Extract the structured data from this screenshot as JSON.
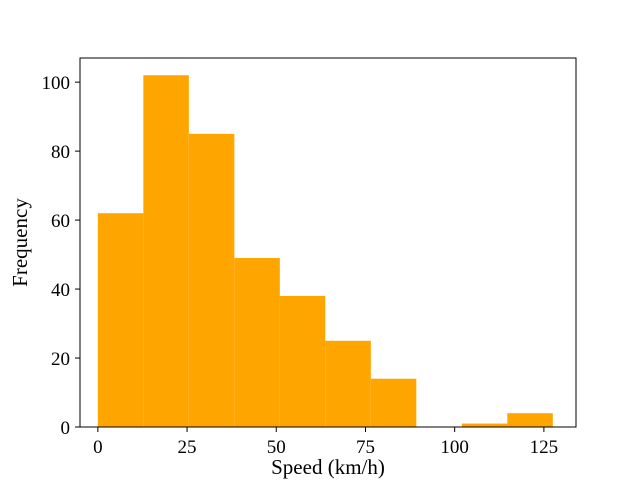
{
  "chart_data": {
    "type": "bar",
    "subtype": "histogram",
    "title": "",
    "xlabel": "Speed (km/h)",
    "ylabel": "Frequency",
    "bin_edges": [
      0,
      12.75,
      25.5,
      38.25,
      51,
      63.75,
      76.5,
      89.25,
      102,
      114.75,
      127.5
    ],
    "values": [
      62,
      102,
      85,
      49,
      38,
      25,
      14,
      0,
      1,
      4
    ],
    "xlim": [
      -5,
      134
    ],
    "ylim": [
      0,
      107
    ],
    "xticks": [
      0,
      25,
      50,
      75,
      100,
      125
    ],
    "xtick_labels": [
      "0",
      "25",
      "50",
      "75",
      "100",
      "125"
    ],
    "yticks": [
      0,
      20,
      40,
      60,
      80,
      100
    ],
    "ytick_labels": [
      "0",
      "20",
      "40",
      "60",
      "80",
      "100"
    ],
    "bar_color": "#ffa500",
    "grid": false,
    "legend": "none"
  }
}
